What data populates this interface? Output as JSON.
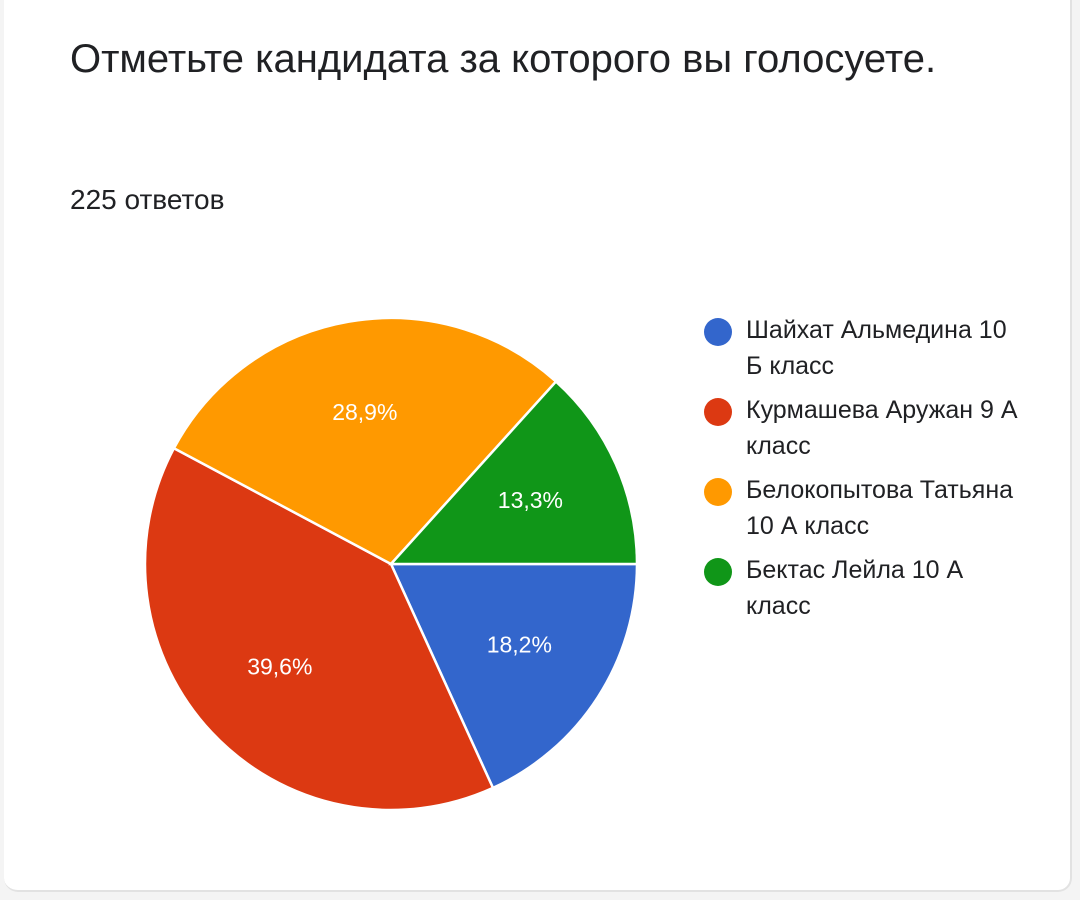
{
  "question": {
    "title": "Отметьте кандидата за которого вы голосуете.",
    "responses": "225 ответов"
  },
  "chart_data": {
    "type": "pie",
    "title": "Отметьте кандидата за которого вы голосуете.",
    "slices": [
      {
        "name": "Шайхат Альмедина 10 Б класс",
        "value": 18.2,
        "label": "18,2%",
        "color": "#3366cc"
      },
      {
        "name": "Курмашева Аружан 9 А класс",
        "value": 39.6,
        "label": "39,6%",
        "color": "#dc3912"
      },
      {
        "name": "Белокопытова Татьяна 10 А класс",
        "value": 28.9,
        "label": "28,9%",
        "color": "#ff9900"
      },
      {
        "name": "Бектас Лейла 10 А класс",
        "value": 13.3,
        "label": "13,3%",
        "color": "#109618"
      }
    ],
    "legend_position": "right"
  }
}
